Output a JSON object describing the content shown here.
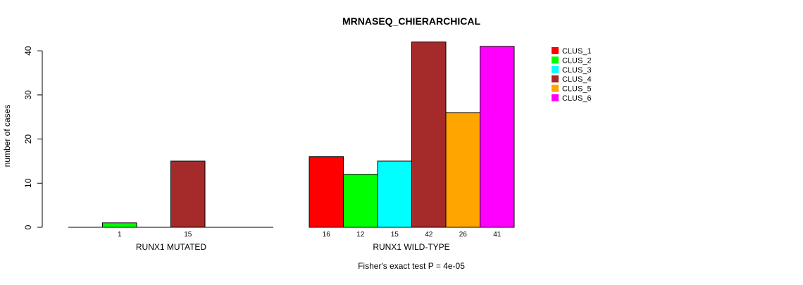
{
  "chart_data": {
    "type": "bar",
    "title": "MRNASEQ_CHIERARCHICAL",
    "ylabel": "number of cases",
    "ylim": [
      0,
      42
    ],
    "yticks": [
      0,
      10,
      20,
      30,
      40
    ],
    "footer": "Fisher's exact test P = 4e-05",
    "legend": [
      "CLUS_1",
      "CLUS_2",
      "CLUS_3",
      "CLUS_4",
      "CLUS_5",
      "CLUS_6"
    ],
    "legend_position": "top-right",
    "colors": [
      "#ff0000",
      "#00ff00",
      "#00ffff",
      "#a52a2a",
      "#ffa500",
      "#ff00ff"
    ],
    "groups": [
      {
        "name": "RUNX1 MUTATED",
        "values": [
          0,
          1,
          0,
          15,
          0,
          0
        ],
        "count_labels": [
          "1",
          "15"
        ]
      },
      {
        "name": "RUNX1 WILD-TYPE",
        "values": [
          16,
          12,
          15,
          42,
          26,
          41
        ],
        "count_labels": [
          "16",
          "12",
          "15",
          "42",
          "26",
          "41"
        ]
      }
    ]
  }
}
